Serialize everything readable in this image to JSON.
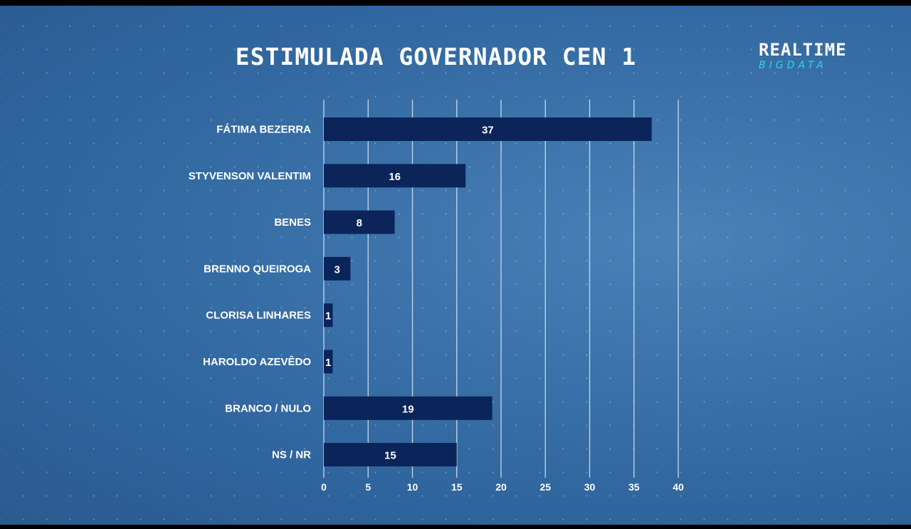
{
  "logo": {
    "top": "REALTIME",
    "bottom": "BIGDATA"
  },
  "chart_data": {
    "type": "bar",
    "orientation": "horizontal",
    "title": "ESTIMULADA GOVERNADOR CEN 1",
    "categories": [
      "FÁTIMA BEZERRA",
      "STYVENSON VALENTIM",
      "BENES",
      "BRENNO QUEIROGA",
      "CLORISA LINHARES",
      "HAROLDO AZEVÊDO",
      "BRANCO / NULO",
      "NS / NR"
    ],
    "values": [
      37,
      16,
      8,
      3,
      1,
      1,
      19,
      15
    ],
    "xlim": [
      0,
      40
    ],
    "xticks": [
      0,
      5,
      10,
      15,
      20,
      25,
      30,
      35,
      40
    ],
    "grid": true,
    "bar_color": "#0b2459",
    "grid_color": "#d6e2ef"
  }
}
